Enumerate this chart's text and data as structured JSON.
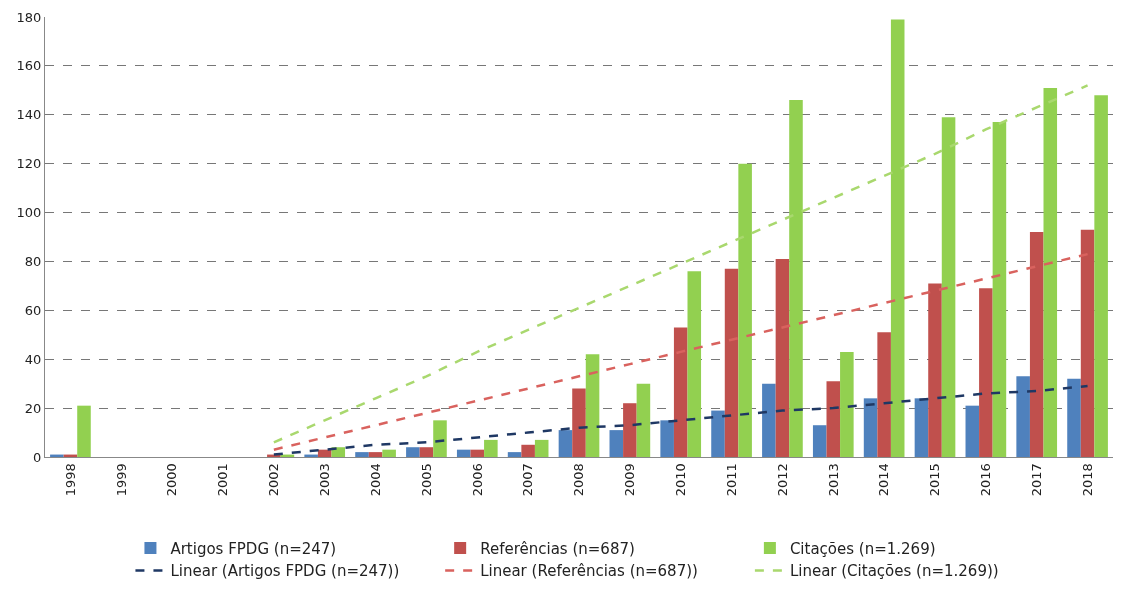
{
  "chart_data": {
    "type": "bar",
    "categories": [
      "1998",
      "1999",
      "2000",
      "2001",
      "2002",
      "2003",
      "2004",
      "2005",
      "2006",
      "2007",
      "2008",
      "2009",
      "2010",
      "2011",
      "2012",
      "2013",
      "2014",
      "2015",
      "2016",
      "2017",
      "2018"
    ],
    "series": [
      {
        "name": "Artigos FPDG (n=247)",
        "color": "#4f81bd",
        "values": [
          1,
          0,
          0,
          0,
          0,
          1,
          2,
          4,
          3,
          2,
          11,
          11,
          15,
          19,
          30,
          13,
          24,
          24,
          21,
          33,
          32
        ]
      },
      {
        "name": "Referências (n=687)",
        "color": "#c0504d",
        "values": [
          1,
          0,
          0,
          0,
          1,
          3,
          2,
          4,
          3,
          5,
          28,
          22,
          53,
          77,
          81,
          31,
          51,
          71,
          69,
          92,
          93
        ]
      },
      {
        "name": "Citações (n=1.269)",
        "color": "#92d050",
        "values": [
          21,
          0,
          0,
          0,
          1,
          4,
          3,
          15,
          7,
          7,
          42,
          30,
          76,
          120,
          146,
          43,
          179,
          139,
          137,
          151,
          148
        ]
      },
      {
        "name": "Linear (Artigos FPDG (n=247))",
        "type": "line",
        "line_style": "dashed",
        "color": "#1f3864",
        "values": [
          null,
          null,
          null,
          null,
          1,
          3,
          5,
          6,
          8,
          10,
          12,
          13,
          15,
          17,
          19,
          20,
          22,
          24,
          26,
          27,
          29
        ]
      },
      {
        "name": "Linear (Referências (n=687))",
        "type": "line",
        "line_style": "dashed",
        "color": "#d9625e",
        "values": [
          null,
          null,
          null,
          null,
          3,
          8,
          13,
          18,
          23,
          28,
          33,
          38,
          43,
          48,
          53,
          58,
          63,
          68,
          73,
          78,
          83
        ]
      },
      {
        "name": "Linear (Citações (n=1.269))",
        "type": "line",
        "line_style": "dashed",
        "color": "#a9d86e",
        "values": [
          null,
          null,
          null,
          null,
          6,
          15,
          24,
          33,
          43,
          52,
          61,
          70,
          79,
          88,
          97,
          106,
          115,
          124,
          134,
          143,
          152
        ]
      }
    ],
    "ylim": [
      0,
      180
    ],
    "yticks": [
      0,
      20,
      40,
      60,
      80,
      100,
      120,
      140,
      160,
      180
    ],
    "grid": "y",
    "legend": "bottom"
  }
}
